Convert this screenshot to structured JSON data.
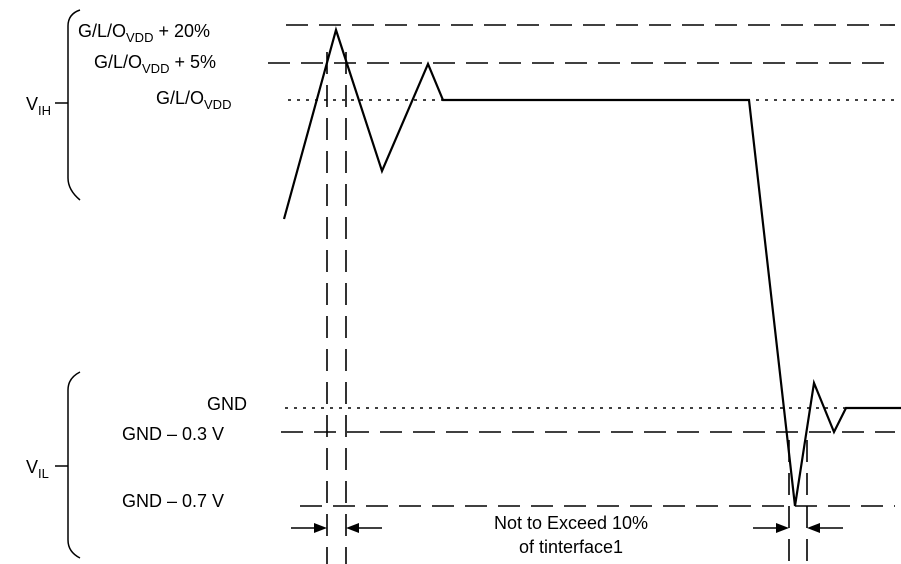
{
  "labels": {
    "vih": "V",
    "vih_sub": "IH",
    "vil": "V",
    "vil_sub": "IL",
    "ovdd_plus20_prefix": "G/L/O",
    "ovdd_plus20_sub": "VDD",
    "ovdd_plus20_suffix": " + 20%",
    "ovdd_plus5_prefix": "G/L/O",
    "ovdd_plus5_sub": "VDD",
    "ovdd_plus5_suffix": " + 5%",
    "ovdd_prefix": "G/L/O",
    "ovdd_sub": "VDD",
    "gnd": "GND",
    "gnd_minus_03": "GND – 0.3 V",
    "gnd_minus_07": "GND – 0.7 V",
    "note_line1": "Not to Exceed 10%",
    "note_line2": "of tinterface1"
  }
}
